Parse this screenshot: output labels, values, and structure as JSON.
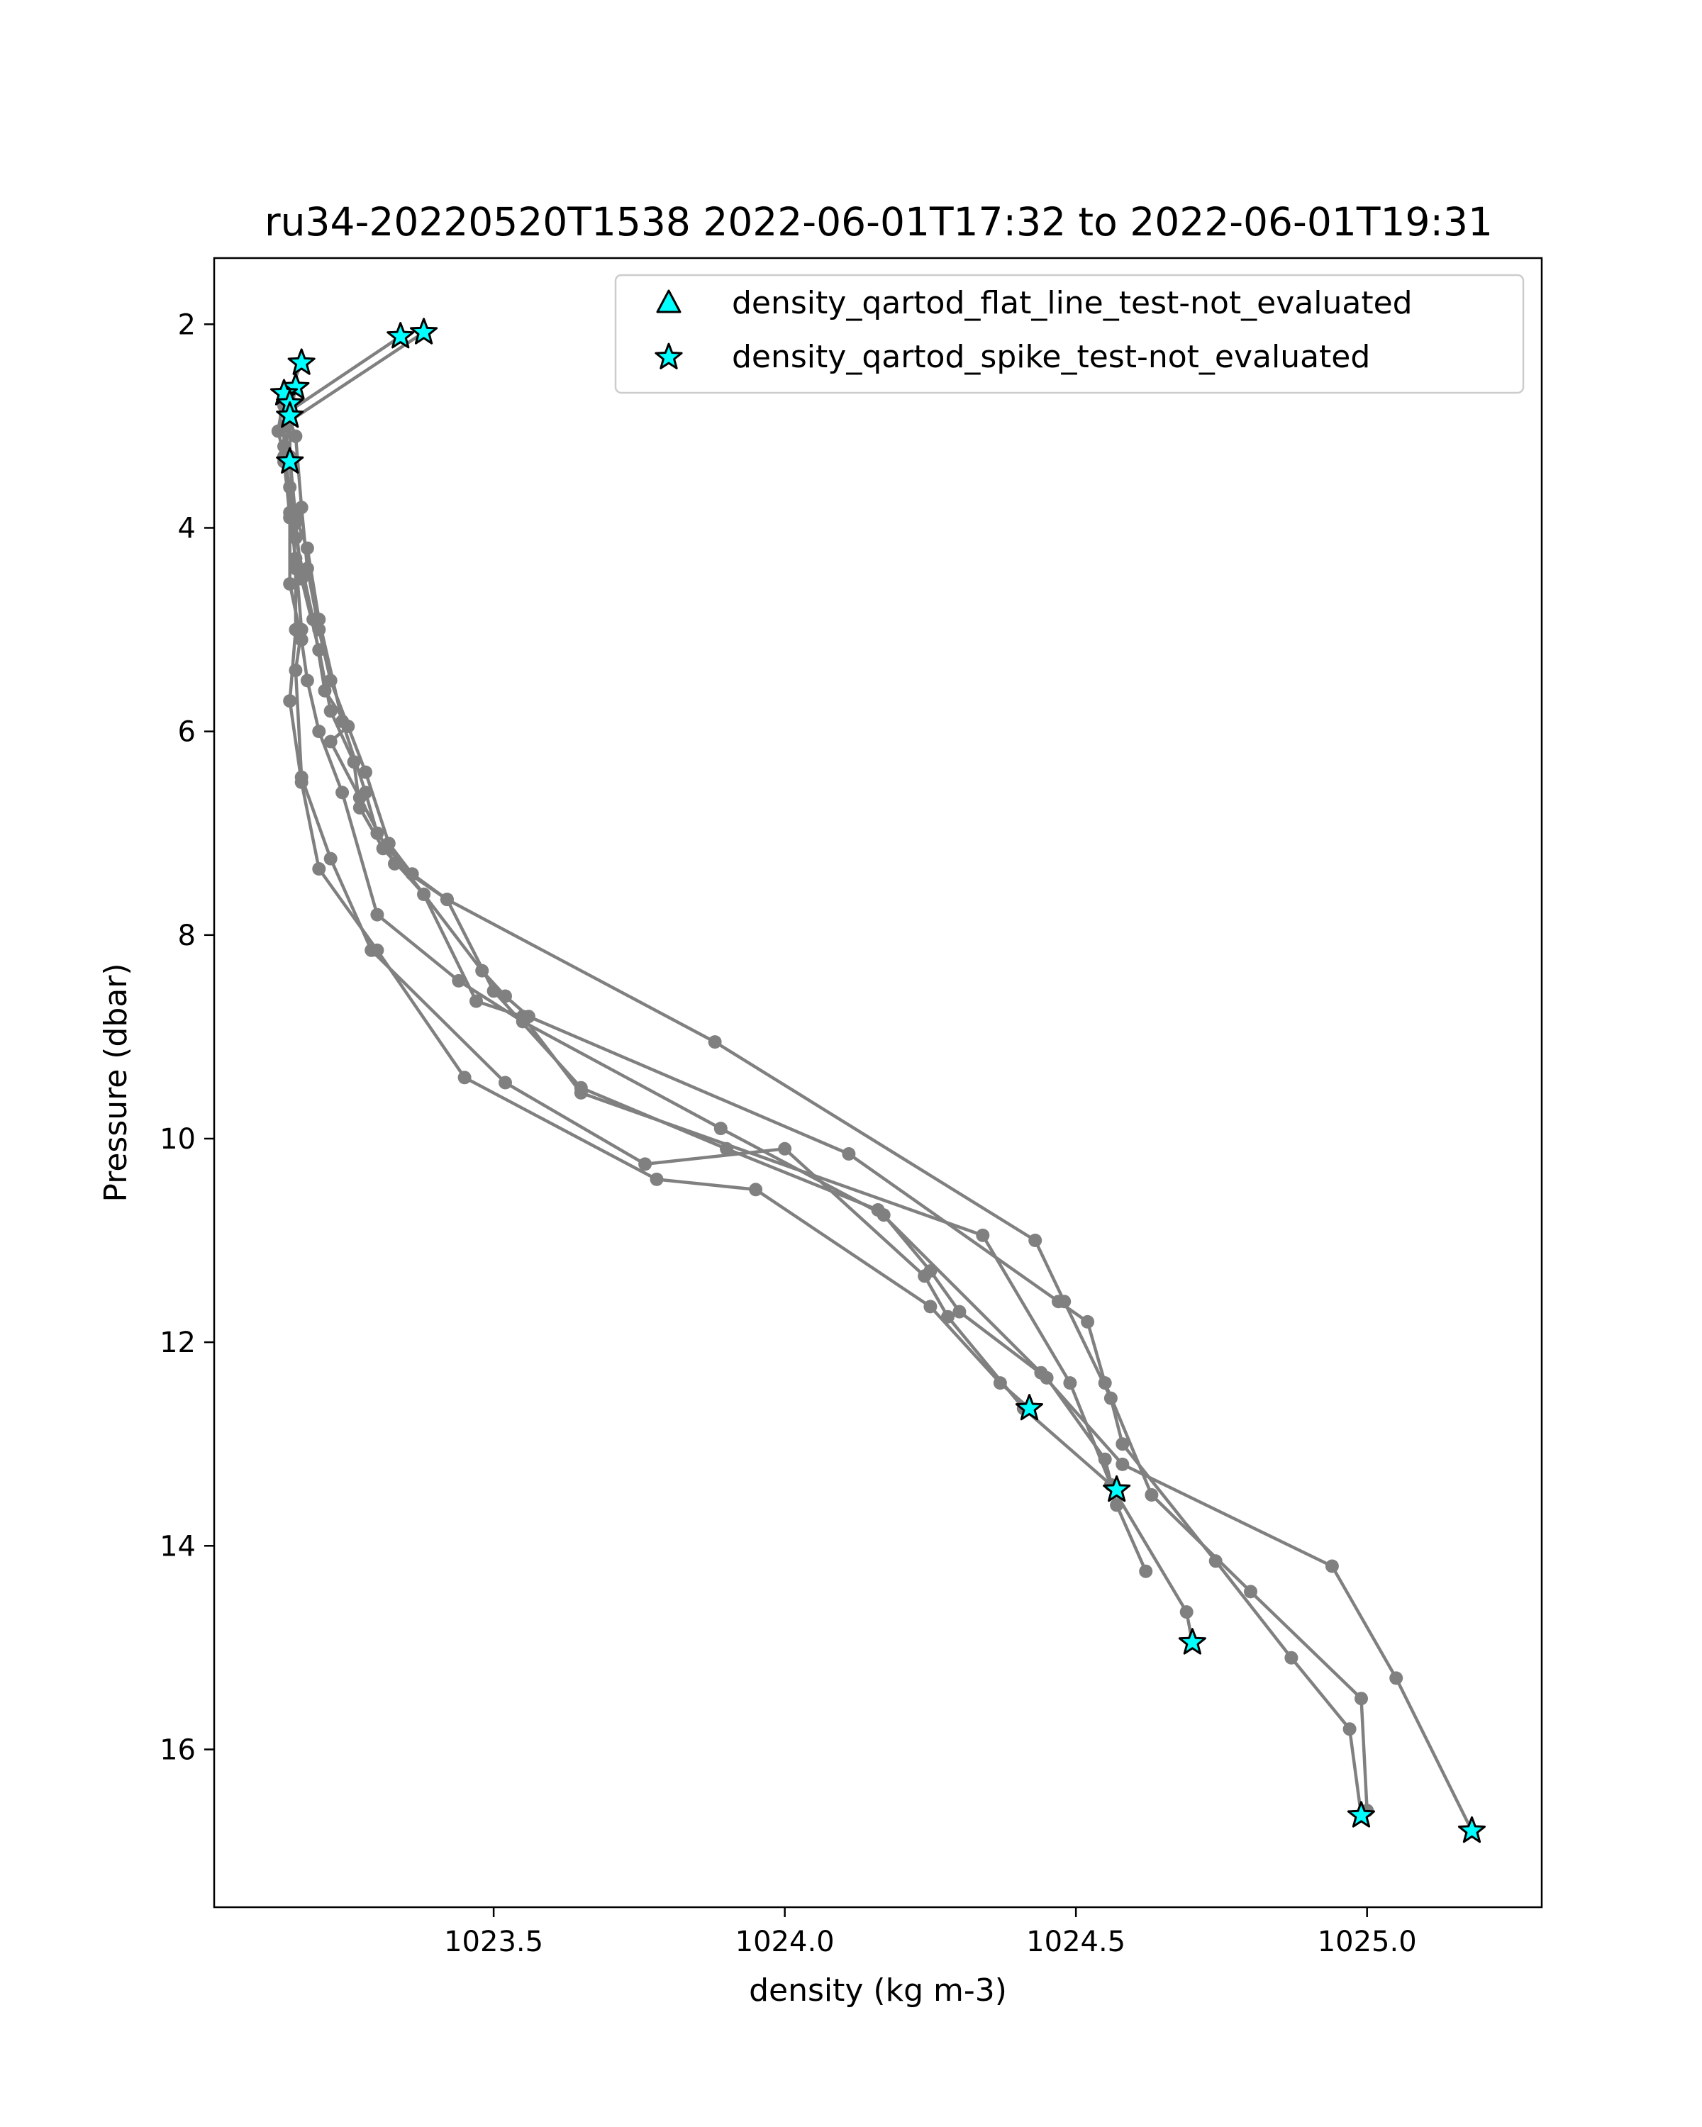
{
  "chart_data": {
    "type": "line",
    "title": "ru34-20220520T1538 2022-06-01T17:32 to 2022-06-01T19:31",
    "xlabel": "density (kg m-3)",
    "ylabel": "Pressure (dbar)",
    "xlim": [
      1023.02,
      1025.3
    ],
    "ylim": [
      17.55,
      1.35
    ],
    "y_inverted": true,
    "x_ticks": [
      1023.5,
      1024.0,
      1024.5,
      1025.0
    ],
    "x_tick_labels": [
      "1023.5",
      "1024.0",
      "1024.5",
      "1025.0"
    ],
    "y_ticks": [
      2,
      4,
      6,
      8,
      10,
      12,
      14,
      16
    ],
    "y_tick_labels": [
      "2",
      "4",
      "6",
      "8",
      "10",
      "12",
      "14",
      "16"
    ],
    "grid": false,
    "line_color": "#808080",
    "marker_color": "#00ffff",
    "legend_position": "top-right",
    "legend": [
      {
        "label": "density_qartod_flat_line_test-not_evaluated",
        "marker": "triangle",
        "color": "#00ffff"
      },
      {
        "label": "density_qartod_spike_test-not_evaluated",
        "marker": "star",
        "color": "#00ffff"
      }
    ],
    "series": [
      {
        "points": [
          [
            1023.38,
            2.08
          ],
          [
            1023.15,
            2.95
          ],
          [
            1023.16,
            3.1
          ],
          [
            1023.17,
            3.8
          ],
          [
            1023.18,
            4.4
          ],
          [
            1023.2,
            5.0
          ],
          [
            1023.22,
            5.5
          ],
          [
            1023.28,
            6.4
          ],
          [
            1023.32,
            7.1
          ],
          [
            1023.36,
            7.4
          ],
          [
            1023.42,
            7.65
          ],
          [
            1023.88,
            9.05
          ],
          [
            1024.43,
            11.0
          ],
          [
            1024.48,
            11.6
          ],
          [
            1024.56,
            12.55
          ],
          [
            1024.58,
            13.0
          ],
          [
            1024.74,
            14.15
          ],
          [
            1024.87,
            15.1
          ],
          [
            1024.97,
            15.8
          ],
          [
            1024.99,
            16.65
          ]
        ]
      },
      {
        "points": [
          [
            1023.34,
            2.12
          ],
          [
            1023.15,
            2.85
          ],
          [
            1023.15,
            3.3
          ],
          [
            1023.16,
            3.9
          ],
          [
            1023.18,
            4.2
          ],
          [
            1023.2,
            4.9
          ],
          [
            1023.24,
            5.9
          ],
          [
            1023.28,
            6.6
          ],
          [
            1023.3,
            7.0
          ],
          [
            1023.38,
            7.6
          ],
          [
            1023.48,
            8.35
          ],
          [
            1023.52,
            8.6
          ],
          [
            1023.56,
            8.8
          ],
          [
            1024.11,
            10.15
          ],
          [
            1024.47,
            11.6
          ],
          [
            1024.52,
            11.8
          ],
          [
            1024.55,
            12.4
          ],
          [
            1024.63,
            13.5
          ],
          [
            1024.8,
            14.45
          ],
          [
            1024.99,
            15.5
          ],
          [
            1025.0,
            16.6
          ]
        ]
      },
      {
        "points": [
          [
            1023.17,
            2.38
          ],
          [
            1023.14,
            2.8
          ],
          [
            1023.14,
            3.2
          ],
          [
            1023.16,
            4.1
          ],
          [
            1023.19,
            4.9
          ],
          [
            1023.21,
            5.6
          ],
          [
            1023.25,
            5.95
          ],
          [
            1023.22,
            6.1
          ],
          [
            1023.27,
            6.65
          ],
          [
            1023.33,
            7.3
          ],
          [
            1023.42,
            7.65
          ],
          [
            1023.5,
            8.55
          ],
          [
            1023.65,
            9.5
          ],
          [
            1023.9,
            10.1
          ],
          [
            1024.16,
            10.7
          ],
          [
            1024.44,
            12.3
          ],
          [
            1024.58,
            13.2
          ],
          [
            1024.94,
            14.2
          ],
          [
            1025.05,
            15.3
          ],
          [
            1025.18,
            16.8
          ]
        ]
      },
      {
        "points": [
          [
            1023.16,
            2.62
          ],
          [
            1023.15,
            2.9
          ],
          [
            1023.15,
            3.35
          ],
          [
            1023.16,
            3.95
          ],
          [
            1023.17,
            4.5
          ],
          [
            1023.2,
            5.2
          ],
          [
            1023.22,
            5.8
          ],
          [
            1023.26,
            6.3
          ],
          [
            1023.27,
            6.75
          ],
          [
            1023.31,
            7.15
          ],
          [
            1023.38,
            7.6
          ],
          [
            1023.47,
            8.65
          ],
          [
            1023.55,
            8.8
          ],
          [
            1023.65,
            9.55
          ],
          [
            1024.34,
            10.95
          ],
          [
            1024.49,
            12.4
          ],
          [
            1024.56,
            13.4
          ],
          [
            1024.69,
            14.65
          ],
          [
            1024.7,
            14.95
          ]
        ]
      },
      {
        "points": [
          [
            1023.14,
            2.68
          ],
          [
            1023.13,
            3.05
          ],
          [
            1023.14,
            3.3
          ],
          [
            1023.15,
            3.9
          ],
          [
            1023.15,
            4.55
          ],
          [
            1023.17,
            5.1
          ],
          [
            1023.18,
            5.5
          ],
          [
            1023.2,
            6.0
          ],
          [
            1023.24,
            6.6
          ],
          [
            1023.3,
            7.8
          ],
          [
            1023.44,
            8.45
          ],
          [
            1023.55,
            8.85
          ],
          [
            1023.89,
            9.9
          ],
          [
            1024.17,
            10.75
          ],
          [
            1024.25,
            11.3
          ],
          [
            1024.3,
            11.7
          ],
          [
            1024.45,
            12.35
          ],
          [
            1024.55,
            13.15
          ],
          [
            1024.57,
            13.6
          ],
          [
            1024.62,
            14.25
          ]
        ]
      },
      {
        "points": [
          [
            1023.15,
            2.78
          ],
          [
            1023.14,
            3.0
          ],
          [
            1023.14,
            3.35
          ],
          [
            1023.15,
            3.85
          ],
          [
            1023.16,
            4.3
          ],
          [
            1023.17,
            5.0
          ],
          [
            1023.16,
            5.4
          ],
          [
            1023.17,
            6.45
          ],
          [
            1023.22,
            7.25
          ],
          [
            1023.29,
            8.15
          ],
          [
            1023.52,
            9.45
          ],
          [
            1023.76,
            10.25
          ],
          [
            1024.0,
            10.1
          ],
          [
            1024.24,
            11.35
          ],
          [
            1024.28,
            11.75
          ],
          [
            1024.41,
            12.65
          ],
          [
            1024.57,
            13.45
          ]
        ]
      },
      {
        "points": [
          [
            1023.15,
            2.9
          ],
          [
            1023.14,
            3.3
          ],
          [
            1023.15,
            3.6
          ],
          [
            1023.16,
            4.4
          ],
          [
            1023.16,
            5.0
          ],
          [
            1023.15,
            5.7
          ],
          [
            1023.17,
            6.5
          ],
          [
            1023.2,
            7.35
          ],
          [
            1023.3,
            8.15
          ],
          [
            1023.45,
            9.4
          ],
          [
            1023.78,
            10.4
          ],
          [
            1023.95,
            10.5
          ],
          [
            1024.25,
            11.65
          ],
          [
            1024.37,
            12.4
          ],
          [
            1024.42,
            12.65
          ]
        ]
      }
    ],
    "spike_markers": [
      [
        1023.38,
        2.08
      ],
      [
        1023.34,
        2.12
      ],
      [
        1023.17,
        2.38
      ],
      [
        1023.16,
        2.62
      ],
      [
        1023.14,
        2.68
      ],
      [
        1023.15,
        2.78
      ],
      [
        1023.15,
        2.9
      ],
      [
        1023.15,
        3.35
      ],
      [
        1024.42,
        12.65
      ],
      [
        1024.57,
        13.45
      ],
      [
        1024.7,
        14.95
      ],
      [
        1024.99,
        16.65
      ],
      [
        1025.18,
        16.8
      ]
    ],
    "flat_line_markers": []
  }
}
